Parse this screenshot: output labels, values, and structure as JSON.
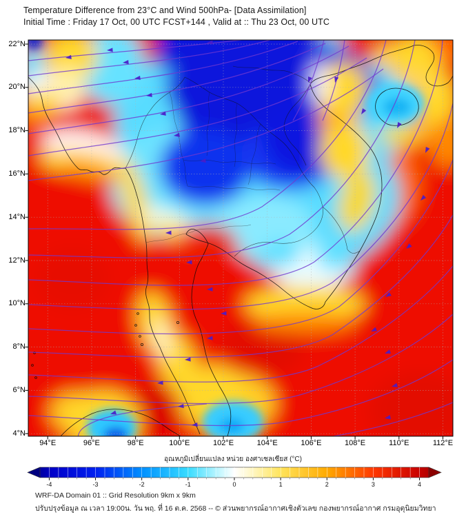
{
  "header": {
    "title_line1": "Temperature Difference from 23°C and Wind 500hPa- [Data Assimilation]",
    "title_line2": "Initial Time : Friday 17 Oct, 00 UTC FCST+144 , Valid at ::  Thu 23 Oct, 00 UTC"
  },
  "map": {
    "lat_labels": [
      "22°N",
      "20°N",
      "18°N",
      "16°N",
      "14°N",
      "12°N",
      "10°N",
      "8°N",
      "6°N",
      "4°N"
    ],
    "lon_labels": [
      "94°E",
      "96°E",
      "98°E",
      "100°E",
      "102°E",
      "104°E",
      "106°E",
      "108°E",
      "110°E",
      "112°E"
    ]
  },
  "colorbar": {
    "label": "อุณหภูมิเปลี่ยนแปลง หน่วย องศาเซลเซียส (°C)",
    "ticks": [
      "-4",
      "-3",
      "-2",
      "-1",
      "0",
      "1",
      "2",
      "3",
      "4"
    ],
    "tips": {
      "left": "#000080",
      "right": "#8b0000"
    },
    "gradient": [
      {
        "o": 0.0,
        "c": "#0000a0"
      },
      {
        "o": 0.03,
        "c": "#0000c8"
      },
      {
        "o": 0.143,
        "c": "#0020f0"
      },
      {
        "o": 0.262,
        "c": "#0090ff"
      },
      {
        "o": 0.381,
        "c": "#38dcff"
      },
      {
        "o": 0.46,
        "c": "#c0f6ff"
      },
      {
        "o": 0.5,
        "c": "#ffffff"
      },
      {
        "o": 0.54,
        "c": "#fff8cc"
      },
      {
        "o": 0.619,
        "c": "#ffe45c"
      },
      {
        "o": 0.738,
        "c": "#ffaa00"
      },
      {
        "o": 0.857,
        "c": "#ff3800"
      },
      {
        "o": 0.97,
        "c": "#cc0400"
      },
      {
        "o": 1.0,
        "c": "#b40000"
      }
    ]
  },
  "footer": {
    "line1": "WRF-DA Domain 01 :: Grid Resolution 9km x 9km",
    "line2": "ปรับปรุงข้อมูล ณ เวลา 19:00น. วัน พฤ. ที่ 16 ต.ค. 2568 -- © ส่วนพยากรณ์อากาศเชิงตัวเลข กองพยากรณ์อากาศ กรมอุตุนิยมวิทยา"
  },
  "chart_data": {
    "type": "heatmap",
    "title": "Temperature Difference from 23°C and Wind 500hPa- [Data Assimilation]",
    "colorbar": {
      "label": "อุณหภูมิเปลี่ยนแปลง หน่วย องศาเซลเซียส (°C)",
      "ticks": [
        -4,
        -3,
        -2,
        -1,
        0,
        1,
        2,
        3,
        4
      ],
      "range": [
        -4,
        4
      ]
    },
    "x_axis": {
      "label": "longitude",
      "ticks": [
        "94°E",
        "96°E",
        "98°E",
        "100°E",
        "102°E",
        "104°E",
        "106°E",
        "108°E",
        "110°E",
        "112°E"
      ]
    },
    "y_axis": {
      "label": "latitude",
      "ticks": [
        "22°N",
        "20°N",
        "18°N",
        "16°N",
        "14°N",
        "12°N",
        "10°N",
        "8°N",
        "6°N",
        "4°N"
      ]
    },
    "overlay": "500 hPa wind streamlines (purple, predominantly easterly, turning southwest on the eastern side)",
    "field_summary": [
      {
        "region": "northern Vietnam / Laos (100-106.5E, 17-22N)",
        "value_c": "-3 to -4 (deep blue)"
      },
      {
        "region": "central and northeastern Thailand (99-105E, 12-18N)",
        "value_c": "-1 to -2 (cyan)"
      },
      {
        "region": "Andaman Sea, Gulf area and seas south of 12N",
        "value_c": "+3 to +4 (red)"
      },
      {
        "region": "yellow transition bands: west-coast diagonal, around Cambodia/Mekong delta, Gulf of Tonkin arc near Hainan, top-left band",
        "value_c": "+1 to +2"
      },
      {
        "region": "Hainan island (110E, 19N)",
        "value_c": "about -1.5 (cyan spot)"
      },
      {
        "region": "cold spots near 4N at 97E and 101E",
        "value_c": "about -2"
      }
    ]
  }
}
